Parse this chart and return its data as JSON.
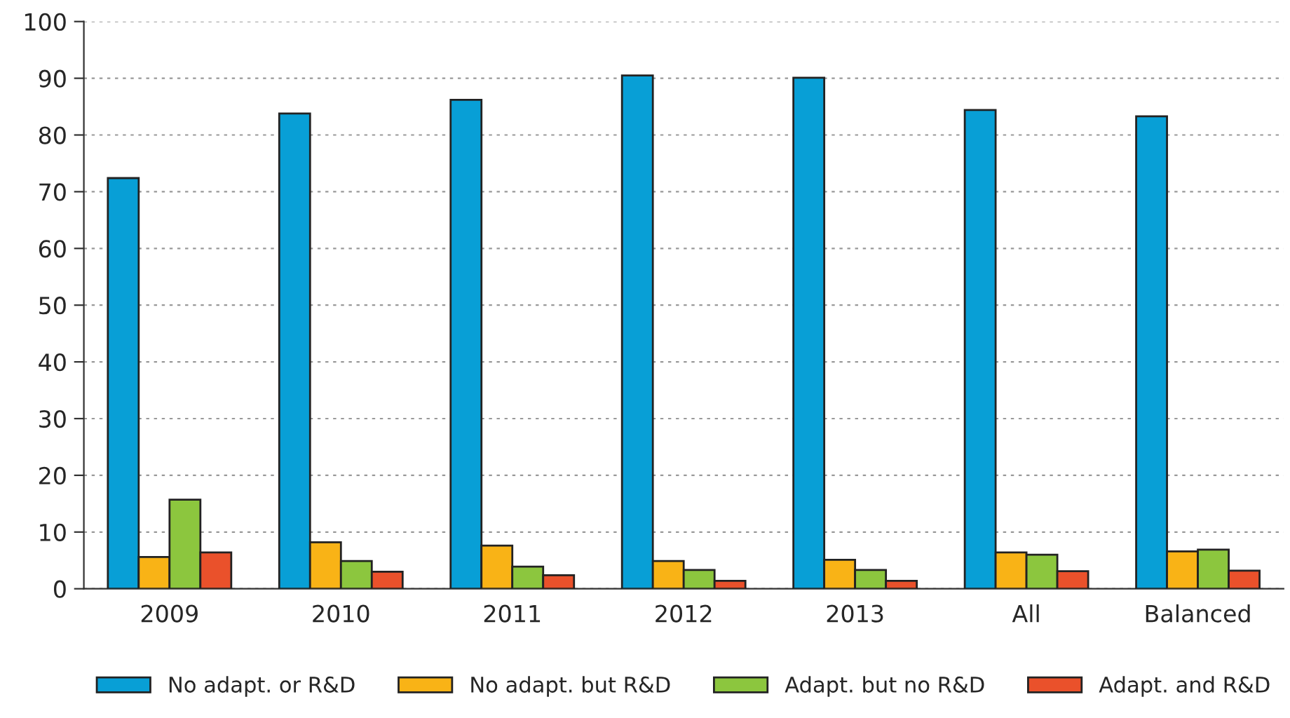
{
  "chart_data": {
    "type": "bar",
    "categories": [
      "2009",
      "2010",
      "2011",
      "2012",
      "2013",
      "All",
      "Balanced"
    ],
    "series": [
      {
        "name": "No adapt. or R&D",
        "color": "#089fd6",
        "values": [
          72.4,
          83.8,
          86.2,
          90.5,
          90.1,
          84.4,
          83.3
        ]
      },
      {
        "name": "No adapt. but R&D",
        "color": "#f9b316",
        "values": [
          5.6,
          8.2,
          7.6,
          4.9,
          5.1,
          6.4,
          6.6
        ]
      },
      {
        "name": "Adapt. but no R&D",
        "color": "#8cc63e",
        "values": [
          15.7,
          4.9,
          3.9,
          3.3,
          3.3,
          6.0,
          6.9
        ]
      },
      {
        "name": "Adapt. and R&D",
        "color": "#ea512b",
        "values": [
          6.4,
          3.0,
          2.4,
          1.4,
          1.4,
          3.1,
          3.2
        ]
      }
    ],
    "ylim": [
      0,
      100
    ],
    "yticks": [
      0,
      10,
      20,
      30,
      40,
      50,
      60,
      70,
      80,
      90,
      100
    ],
    "grid": "y",
    "legend": "bottom"
  }
}
